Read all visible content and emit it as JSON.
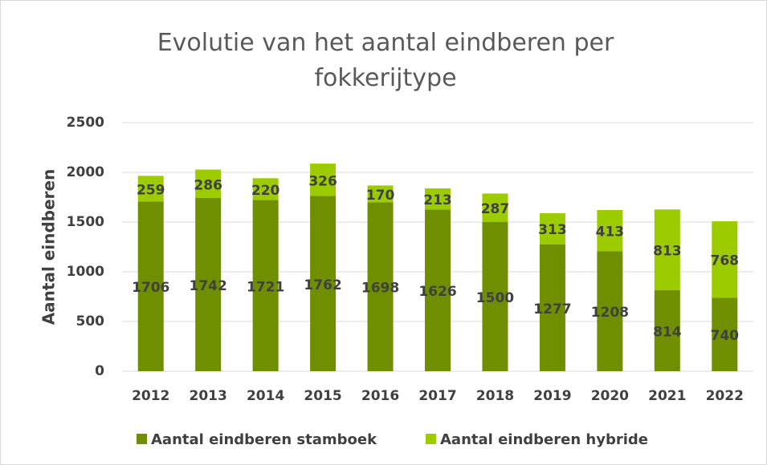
{
  "chart_data": {
    "type": "stacked_bar",
    "title": "Evolutie van het aantal eindberen per fokkerijtype",
    "y_label": "Aantal eindberen",
    "categories": [
      "2012",
      "2013",
      "2014",
      "2015",
      "2016",
      "2017",
      "2018",
      "2019",
      "2020",
      "2021",
      "2022"
    ],
    "series": [
      {
        "name": "Aantal eindberen stamboek",
        "color": "#6f8f00",
        "values": [
          1706,
          1742,
          1721,
          1762,
          1698,
          1626,
          1500,
          1277,
          1208,
          814,
          740
        ]
      },
      {
        "name": "Aantal eindberen hybride",
        "color": "#9ccb00",
        "values": [
          259,
          286,
          220,
          326,
          170,
          213,
          287,
          313,
          413,
          813,
          768
        ]
      }
    ],
    "ylim": [
      0,
      2500
    ],
    "yticks": [
      0,
      500,
      1000,
      1500,
      2000,
      2500
    ],
    "grid": true,
    "legend": "bottom"
  }
}
